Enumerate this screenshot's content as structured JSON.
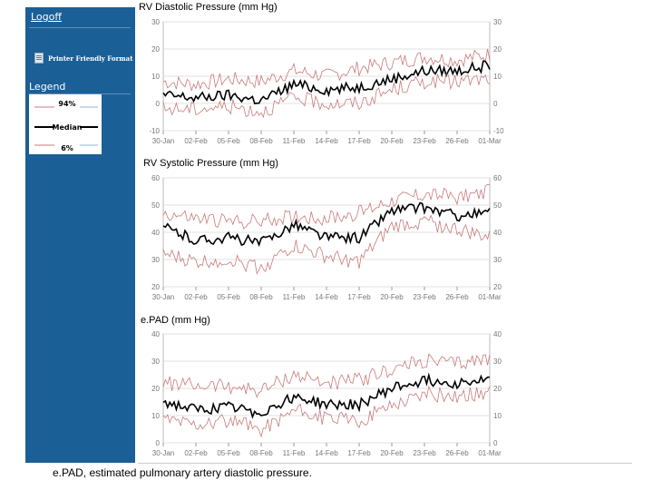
{
  "sidebar": {
    "logoff_label": "Logoff",
    "printer_label": "Printer Friendly Format",
    "legend_title": "Legend",
    "legend_items": [
      {
        "label": "94%",
        "color": "#c87a7a"
      },
      {
        "label": "Median",
        "color": "#000000"
      },
      {
        "label": "6%",
        "color": "#c87a7a"
      }
    ]
  },
  "caption": "e.PAD, estimated pulmonary artery diastolic pressure.",
  "colors": {
    "sidebar": "#1b5f97",
    "band": "#c87a7a",
    "median": "#000000",
    "grid": "#cccccc"
  },
  "chart_data": [
    {
      "type": "line",
      "title": "RV Diastolic Pressure (mm Hg)",
      "x": [
        "30-Jan",
        "02-Feb",
        "05-Feb",
        "08-Feb",
        "11-Feb",
        "14-Feb",
        "17-Feb",
        "20-Feb",
        "23-Feb",
        "26-Feb",
        "01-Mar"
      ],
      "ylim": [
        -10,
        30
      ],
      "yticks": [
        -10,
        0,
        10,
        20,
        30
      ],
      "series": [
        {
          "name": "94%",
          "values": [
            8,
            7,
            9,
            8,
            12,
            10,
            13,
            15,
            17,
            16,
            18
          ]
        },
        {
          "name": "Median",
          "values": [
            3,
            2,
            3,
            1,
            7,
            5,
            6,
            9,
            12,
            12,
            14
          ]
        },
        {
          "name": "6%",
          "values": [
            -2,
            -2,
            -1,
            -3,
            2,
            0,
            0,
            5,
            8,
            8,
            9
          ]
        }
      ]
    },
    {
      "type": "line",
      "title": "RV Systolic Pressure (mm Hg)",
      "x": [
        "30-Jan",
        "02-Feb",
        "05-Feb",
        "08-Feb",
        "11-Feb",
        "14-Feb",
        "17-Feb",
        "20-Feb",
        "23-Feb",
        "26-Feb",
        "01-Mar"
      ],
      "ylim": [
        20,
        60
      ],
      "yticks": [
        20,
        30,
        40,
        50,
        60
      ],
      "series": [
        {
          "name": "94%",
          "values": [
            47,
            45,
            44,
            44,
            46,
            45,
            47,
            52,
            54,
            53,
            55
          ]
        },
        {
          "name": "Median",
          "values": [
            42,
            37,
            38,
            36,
            43,
            38,
            38,
            48,
            49,
            46,
            47
          ]
        },
        {
          "name": "6%",
          "values": [
            32,
            29,
            30,
            27,
            35,
            31,
            29,
            42,
            44,
            41,
            38
          ]
        }
      ]
    },
    {
      "type": "line",
      "title": "e.PAD (mm Hg)",
      "x": [
        "30-Jan",
        "02-Feb",
        "05-Feb",
        "08-Feb",
        "11-Feb",
        "14-Feb",
        "17-Feb",
        "20-Feb",
        "23-Feb",
        "26-Feb",
        "01-Mar"
      ],
      "ylim": [
        0,
        40
      ],
      "yticks": [
        0,
        10,
        20,
        30,
        40
      ],
      "series": [
        {
          "name": "94%",
          "values": [
            22,
            21,
            21,
            19,
            25,
            22,
            23,
            27,
            30,
            29,
            31
          ]
        },
        {
          "name": "Median",
          "values": [
            15,
            12,
            13,
            11,
            17,
            14,
            14,
            20,
            23,
            22,
            23
          ]
        },
        {
          "name": "6%",
          "values": [
            9,
            7,
            8,
            5,
            12,
            9,
            8,
            14,
            18,
            17,
            19
          ]
        }
      ]
    }
  ]
}
